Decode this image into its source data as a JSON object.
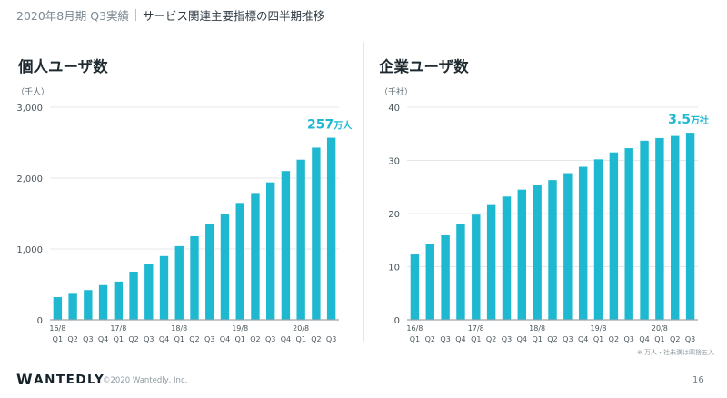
{
  "header": {
    "period": "2020年8月期 Q3実績",
    "subtitle": "サービス関連主要指標の四半期推移"
  },
  "footer": {
    "logo_initial": "W",
    "logo_rest": "ANTEDLY",
    "copyright": "©2020 Wantedly, Inc.",
    "page_number": "16"
  },
  "colors": {
    "bar": "#1fb8d1",
    "callout": "#1fb8d1",
    "axis": "#9aa4a9",
    "grid": "#e3e7e9"
  },
  "chart_data": [
    {
      "type": "bar",
      "title": "個人ユーザ数",
      "unit_label": "（千人）",
      "ylim": [
        0,
        3000
      ],
      "yticks": [
        0,
        1000,
        2000,
        3000
      ],
      "ytick_labels": [
        "0",
        "1,000",
        "2,000",
        "3,000"
      ],
      "grid": true,
      "year_labels": [
        {
          "label": "16/8",
          "index": 0
        },
        {
          "label": "17/8",
          "index": 4
        },
        {
          "label": "18/8",
          "index": 8
        },
        {
          "label": "19/8",
          "index": 12
        },
        {
          "label": "20/8",
          "index": 16
        }
      ],
      "categories": [
        "Q1",
        "Q2",
        "Q3",
        "Q4",
        "Q1",
        "Q2",
        "Q3",
        "Q4",
        "Q1",
        "Q2",
        "Q3",
        "Q4",
        "Q1",
        "Q2",
        "Q3",
        "Q4",
        "Q1",
        "Q2",
        "Q3"
      ],
      "values": [
        320,
        380,
        420,
        490,
        540,
        680,
        790,
        900,
        1040,
        1180,
        1350,
        1490,
        1650,
        1790,
        1940,
        2100,
        2260,
        2430,
        2570
      ],
      "callout": {
        "value": "257",
        "unit": "万人"
      }
    },
    {
      "type": "bar",
      "title": "企業ユーザ数",
      "unit_label": "（千社）",
      "ylim": [
        0,
        40
      ],
      "yticks": [
        0,
        10,
        20,
        30,
        40
      ],
      "ytick_labels": [
        "0",
        "10",
        "20",
        "30",
        "40"
      ],
      "grid": true,
      "year_labels": [
        {
          "label": "16/8",
          "index": 0
        },
        {
          "label": "17/8",
          "index": 4
        },
        {
          "label": "18/8",
          "index": 8
        },
        {
          "label": "19/8",
          "index": 12
        },
        {
          "label": "20/8",
          "index": 16
        }
      ],
      "categories": [
        "Q1",
        "Q2",
        "Q3",
        "Q4",
        "Q1",
        "Q2",
        "Q3",
        "Q4",
        "Q1",
        "Q2",
        "Q3",
        "Q4",
        "Q1",
        "Q2",
        "Q3",
        "Q4",
        "Q1",
        "Q2",
        "Q3"
      ],
      "values": [
        12.3,
        14.2,
        15.9,
        18.0,
        19.8,
        21.6,
        23.2,
        24.5,
        25.3,
        26.3,
        27.6,
        28.8,
        30.2,
        31.5,
        32.3,
        33.7,
        34.2,
        34.6,
        35.2
      ],
      "callout": {
        "value": "3.5",
        "unit": "万社"
      },
      "footnote": "※ 万人・社未満は四捨五入"
    }
  ]
}
